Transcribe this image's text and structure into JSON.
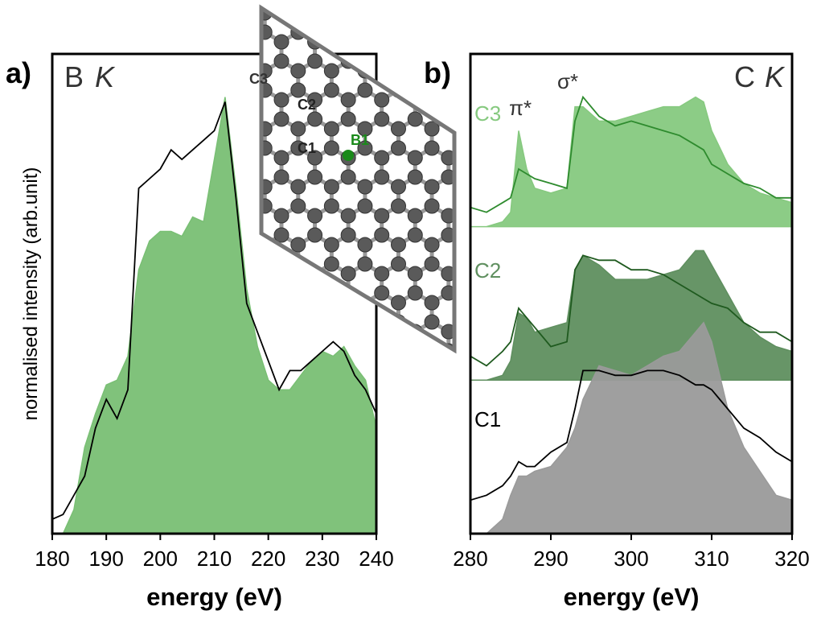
{
  "chart_data": [
    {
      "type": "area",
      "panel_label": "a)",
      "title_element": "B",
      "title_edge": "K",
      "x_label": "energy (eV)",
      "y_label": "normalised intensity (arb.unit)",
      "xlim": [
        180,
        240
      ],
      "xticks": [
        180,
        190,
        200,
        210,
        220,
        230,
        240
      ],
      "ylim": [
        0,
        100
      ],
      "x": [
        180,
        182,
        184,
        186,
        188,
        190,
        192,
        194,
        196,
        198,
        200,
        202,
        204,
        206,
        208,
        210,
        212,
        214,
        216,
        218,
        220,
        222,
        224,
        226,
        228,
        230,
        232,
        234,
        236,
        238,
        240
      ],
      "series": [
        {
          "style": "area",
          "color": "#79bf74",
          "values": [
            0,
            0,
            5,
            18,
            25,
            31,
            32,
            37,
            55,
            61,
            63,
            63,
            62,
            66,
            65,
            78,
            91,
            72,
            51,
            39,
            32,
            30,
            30,
            33,
            36,
            38,
            37,
            39,
            35,
            32,
            22
          ]
        },
        {
          "style": "line",
          "color": "#000000",
          "values": [
            3,
            4,
            8,
            12,
            22,
            28,
            24,
            30,
            72,
            74,
            76,
            80,
            78,
            80,
            82,
            84,
            90,
            70,
            48,
            42,
            36,
            30,
            34,
            34,
            36,
            38,
            40,
            38,
            33,
            30,
            25
          ]
        }
      ],
      "inset_labels": [
        "C3",
        "C2",
        "C1",
        "B1"
      ]
    },
    {
      "type": "area",
      "panel_label": "b)",
      "title_element": "C",
      "title_edge": "K",
      "x_label": "energy (eV)",
      "xlim": [
        280,
        320
      ],
      "xticks": [
        280,
        290,
        300,
        310,
        320
      ],
      "ylim": [
        0,
        100
      ],
      "annotations": [
        "π*",
        "σ*"
      ],
      "x": [
        280,
        282,
        284,
        285,
        286,
        287,
        288,
        290,
        292,
        293,
        294,
        296,
        298,
        300,
        302,
        304,
        306,
        308,
        309,
        310,
        312,
        314,
        316,
        318,
        320
      ],
      "series": [
        {
          "name": "C3",
          "style": "area",
          "color": "#86c97f",
          "values": [
            64,
            64,
            65,
            67,
            84,
            76,
            72,
            71,
            72,
            89,
            89,
            86,
            86,
            87,
            88,
            89,
            89,
            91,
            90,
            84,
            77,
            73,
            71,
            70,
            69
          ]
        },
        {
          "style": "line",
          "color": "#2e8b2e",
          "values": [
            68,
            67,
            69,
            70,
            76,
            75,
            74,
            73,
            72,
            86,
            91,
            87,
            85,
            86,
            85,
            84,
            83,
            81,
            80,
            77,
            75,
            73,
            72,
            70,
            70
          ]
        },
        {
          "name": "C2",
          "style": "area",
          "color": "#5f8f5f",
          "values": [
            32,
            32,
            33,
            36,
            46,
            45,
            42,
            43,
            44,
            55,
            58,
            56,
            53,
            53,
            53,
            54,
            55,
            59,
            59,
            56,
            50,
            44,
            41,
            39,
            38
          ]
        },
        {
          "style": "line",
          "color": "#1f5a1f",
          "values": [
            37,
            35,
            38,
            40,
            47,
            45,
            43,
            39,
            40,
            55,
            58,
            57,
            57,
            55,
            55,
            54,
            52,
            50,
            49,
            48,
            47,
            44,
            42,
            42,
            40
          ]
        },
        {
          "name": "C1",
          "style": "area",
          "color": "#9a9a9a",
          "values": [
            0,
            0,
            3,
            8,
            12,
            12,
            13,
            14,
            18,
            22,
            28,
            35,
            34,
            33,
            35,
            37,
            38,
            42,
            44,
            40,
            26,
            18,
            13,
            8,
            7
          ]
        },
        {
          "style": "line",
          "color": "#000000",
          "values": [
            7,
            8,
            10,
            12,
            15,
            14,
            14,
            17,
            19,
            26,
            34,
            34,
            33,
            33,
            34,
            34,
            33,
            31,
            31,
            30,
            26,
            22,
            20,
            17,
            15
          ]
        }
      ]
    }
  ]
}
